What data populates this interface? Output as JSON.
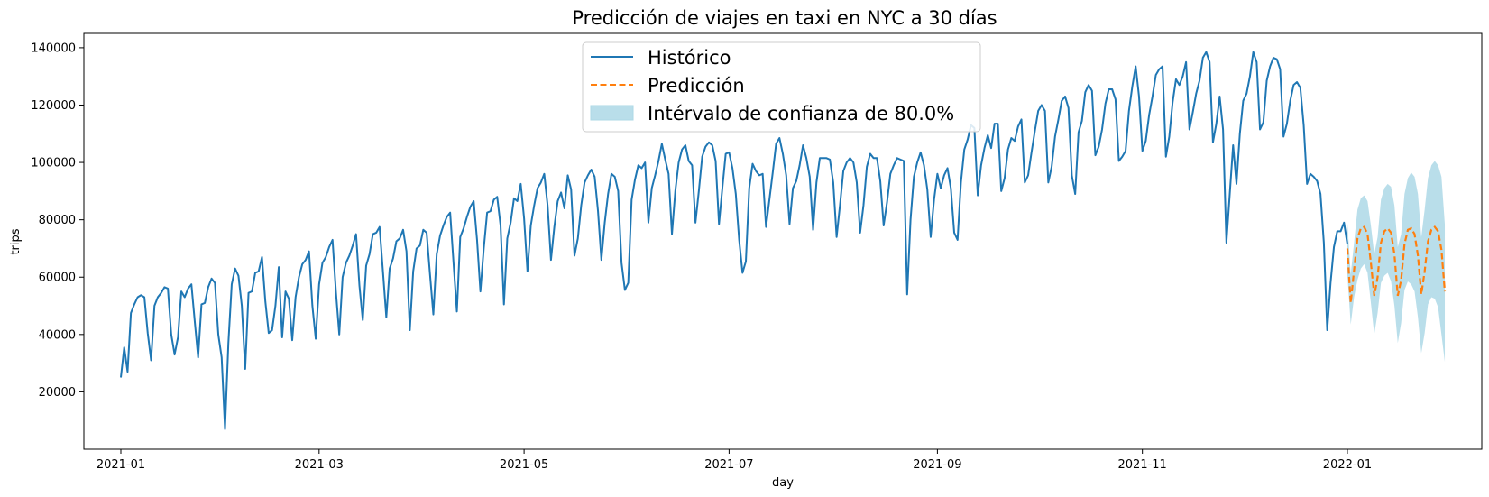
{
  "chart_data": {
    "type": "line",
    "title": "Predicción de viajes en taxi en NYC a 30 días",
    "xlabel": "day",
    "ylabel": "trips",
    "xlim": [
      "2020-12-21",
      "2022-02-10"
    ],
    "ylim": [
      0,
      145000
    ],
    "x_ticks": [
      "2021-01-01",
      "2021-03-01",
      "2021-05-01",
      "2021-07-01",
      "2021-09-01",
      "2021-11-01",
      "2022-01-01"
    ],
    "x_tick_labels": [
      "2021-01",
      "2021-03",
      "2021-05",
      "2021-07",
      "2021-09",
      "2021-11",
      "2022-01"
    ],
    "y_ticks": [
      20000,
      40000,
      60000,
      80000,
      100000,
      120000,
      140000
    ],
    "y_tick_labels": [
      "20000",
      "40000",
      "60000",
      "80000",
      "100000",
      "120000",
      "140000"
    ],
    "grid": false,
    "legend_position": "upper center",
    "colors": {
      "historico": "#1f77b4",
      "prediccion": "#ff7f0e",
      "intervalo": "#add8e6"
    },
    "series": [
      {
        "name": "Histórico",
        "style": "solid",
        "start_date": "2021-01-01",
        "values": [
          25000,
          35500,
          27000,
          47500,
          50500,
          53000,
          53700,
          53000,
          40500,
          31000,
          50000,
          53000,
          54500,
          56500,
          56000,
          40000,
          33000,
          39000,
          55000,
          53000,
          56000,
          57500,
          44500,
          32000,
          50500,
          51000,
          56500,
          59500,
          58000,
          40000,
          32000,
          7000,
          37000,
          57500,
          63000,
          60500,
          50000,
          28000,
          54500,
          55000,
          61500,
          62000,
          67000,
          51500,
          40500,
          41500,
          50000,
          63500,
          39000,
          55000,
          52500,
          38000,
          53000,
          60000,
          64500,
          66000,
          69000,
          50000,
          38500,
          57500,
          65000,
          67000,
          70500,
          73000,
          55000,
          40000,
          60000,
          65000,
          67500,
          71000,
          75000,
          57000,
          45000,
          64000,
          68000,
          75000,
          75500,
          77500,
          62000,
          46000,
          63000,
          66500,
          72500,
          73500,
          76500,
          69000,
          41500,
          62000,
          70000,
          71000,
          76500,
          75500,
          61000,
          47000,
          68000,
          74500,
          78000,
          81000,
          82500,
          65000,
          48000,
          74000,
          77000,
          81000,
          84500,
          86500,
          73000,
          55000,
          70000,
          82500,
          83000,
          87000,
          88000,
          78000,
          50500,
          73500,
          79000,
          87500,
          86500,
          92500,
          80500,
          62000,
          78000,
          85000,
          91000,
          93000,
          96000,
          85000,
          66000,
          77500,
          86500,
          89500,
          84000,
          95500,
          90500,
          67500,
          73500,
          85000,
          93000,
          95500,
          97500,
          95000,
          83000,
          66000,
          79000,
          89000,
          96000,
          95000,
          90000,
          65000,
          55500,
          58000,
          87000,
          94000,
          99000,
          98000,
          100000,
          79000,
          91000,
          95500,
          100500,
          106500,
          101000,
          96000,
          75000,
          90000,
          100000,
          104500,
          106000,
          100500,
          99000,
          79000,
          90000,
          102000,
          105500,
          107000,
          106000,
          100500,
          78500,
          91000,
          103000,
          103500,
          98000,
          89000,
          73000,
          61500,
          65500,
          91000,
          99500,
          97000,
          95500,
          96000,
          77500,
          87000,
          96500,
          106500,
          108500,
          103000,
          95500,
          78500,
          91000,
          93500,
          99000,
          106000,
          101500,
          95000,
          76500,
          93000,
          101500,
          101500,
          101500,
          101000,
          93000,
          74000,
          85000,
          97000,
          100000,
          101500,
          100000,
          93000,
          75500,
          85000,
          98500,
          103000,
          101500,
          101500,
          93500,
          78000,
          86000,
          96000,
          99000,
          101500,
          101000,
          100500,
          54000,
          80000,
          95000,
          100000,
          103500,
          99000,
          90500,
          74000,
          87000,
          96000,
          91000,
          95500,
          98000,
          91000,
          75500,
          73000,
          93000,
          104500,
          108000,
          113000,
          112000,
          88500,
          99000,
          105000,
          109500,
          105000,
          113500,
          113500,
          90000,
          94500,
          104500,
          108500,
          107500,
          112500,
          115000,
          93000,
          95500,
          103500,
          111000,
          118000,
          120000,
          118000,
          93000,
          98500,
          109000,
          115000,
          121500,
          123000,
          119000,
          95500,
          89000,
          110500,
          114500,
          124500,
          127000,
          125000,
          102500,
          105500,
          111500,
          120500,
          125500,
          125500,
          122000,
          100500,
          102000,
          104000,
          118000,
          126500,
          133500,
          123000,
          104000,
          107500,
          116500,
          123000,
          130500,
          132500,
          133500,
          102000,
          109000,
          121000,
          129000,
          127000,
          130000,
          135000,
          111500,
          117500,
          124000,
          128500,
          136500,
          138500,
          135000,
          107000,
          113500,
          123000,
          111500,
          72000,
          89000,
          106000,
          92500,
          110000,
          121500,
          124000,
          130000,
          138500,
          135000,
          111500,
          114000,
          128500,
          133500,
          136500,
          136000,
          132500,
          109000,
          113500,
          121500,
          127000,
          128000,
          126000,
          113000,
          92500,
          96000,
          95000,
          93500,
          89000,
          72000,
          41500,
          58000,
          70500,
          76000,
          76000,
          79000,
          71500
        ]
      },
      {
        "name": "Predicción",
        "style": "dashed",
        "start_date": "2022-01-01",
        "values": [
          70000,
          51000,
          62500,
          73500,
          77000,
          77500,
          75000,
          65000,
          53500,
          60000,
          72000,
          76000,
          77000,
          75500,
          68000,
          53500,
          59000,
          71500,
          76500,
          77000,
          75000,
          67500,
          54000,
          62000,
          72500,
          76500,
          77500,
          76000,
          69500,
          55000
        ]
      },
      {
        "name": "Intérvalo de confianza de 80.0%",
        "style": "band",
        "start_date": "2022-01-01",
        "lower": [
          61000,
          43500,
          53000,
          59000,
          63000,
          64500,
          61500,
          51000,
          40000,
          47500,
          58000,
          60500,
          61500,
          58500,
          50000,
          37000,
          44000,
          55500,
          58500,
          57500,
          55000,
          46000,
          33500,
          40500,
          50500,
          53000,
          52500,
          49500,
          40000,
          30500
        ],
        "upper": [
          79000,
          61000,
          72000,
          83500,
          87500,
          88500,
          86500,
          78000,
          68000,
          74000,
          87000,
          91000,
          92500,
          91500,
          85000,
          70500,
          75000,
          89000,
          94500,
          96500,
          95000,
          89000,
          74000,
          83500,
          94500,
          99000,
          100500,
          99000,
          95000,
          78500
        ]
      }
    ]
  }
}
